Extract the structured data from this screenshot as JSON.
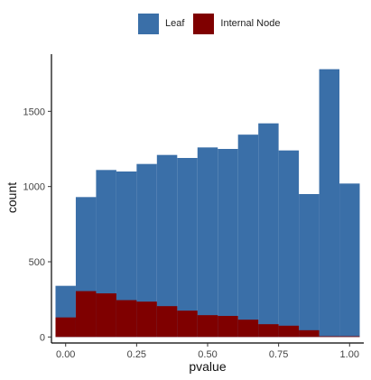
{
  "legend": {
    "items": [
      {
        "label": "Leaf",
        "color": "#3a6fa8"
      },
      {
        "label": "Internal Node",
        "color": "#7f0000"
      }
    ],
    "placement": "top"
  },
  "chart_data": {
    "type": "bar",
    "subtype": "histogram",
    "xlabel": "pvalue",
    "ylabel": "count",
    "xlim": [
      -0.05,
      1.05
    ],
    "ylim": [
      -40,
      1880
    ],
    "grid": false,
    "xticks": [
      0.0,
      0.25,
      0.5,
      0.75,
      1.0
    ],
    "xtick_labels": [
      "0.00",
      "0.25",
      "0.50",
      "0.75",
      "1.00"
    ],
    "yticks": [
      0,
      500,
      1000,
      1500
    ],
    "ytick_labels": [
      "0",
      "500",
      "1000",
      "1500"
    ],
    "bin_edges": [
      -0.0357,
      0.0357,
      0.1071,
      0.1786,
      0.25,
      0.3214,
      0.3929,
      0.4643,
      0.5357,
      0.6071,
      0.6786,
      0.75,
      0.8214,
      0.8929,
      0.9643,
      1.0357
    ],
    "series": [
      {
        "name": "Leaf",
        "color": "#3a6fa8",
        "values": [
          340,
          930,
          1110,
          1100,
          1150,
          1210,
          1190,
          1260,
          1250,
          1345,
          1420,
          1240,
          950,
          1780,
          1020
        ]
      },
      {
        "name": "Internal Node",
        "color": "#7f0000",
        "values": [
          130,
          305,
          290,
          245,
          235,
          205,
          175,
          145,
          140,
          115,
          85,
          75,
          45,
          5,
          5
        ]
      }
    ]
  }
}
